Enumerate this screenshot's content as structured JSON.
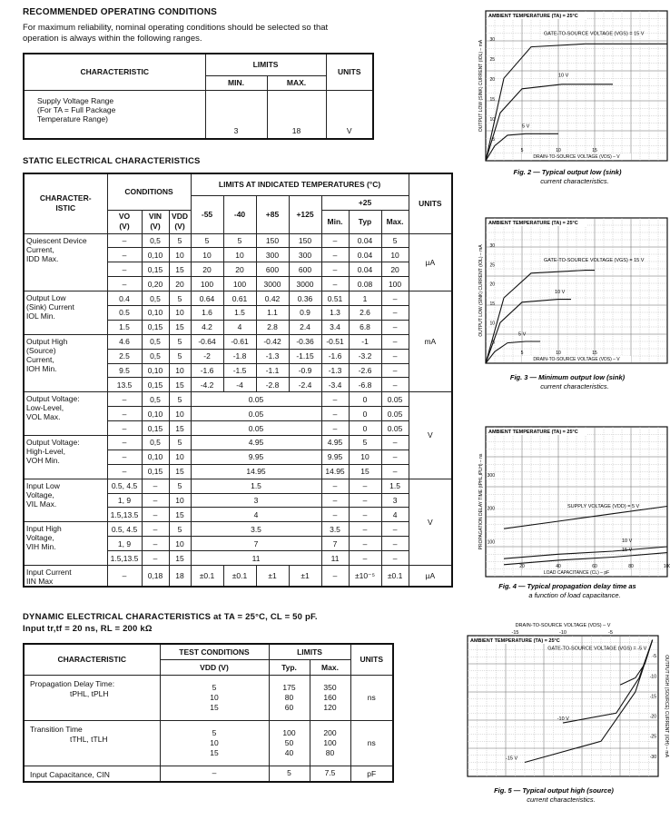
{
  "recommended": {
    "title": "RECOMMENDED OPERATING CONDITIONS",
    "intro": [
      "For maximum reliability, nominal operating conditions should be selected so that",
      "operation is always within the following ranges."
    ],
    "headers": {
      "characteristic": "CHARACTERISTIC",
      "limits": "LIMITS",
      "min": "MIN.",
      "max": "MAX.",
      "units": "UNITS"
    },
    "row": {
      "label": [
        "Supply Voltage Range",
        "(For TA = Full Package",
        "Temperature Range)"
      ],
      "min": "3",
      "max": "18",
      "units": "V"
    }
  },
  "static": {
    "title": "STATIC ELECTRICAL CHARACTERISTICS",
    "headers": {
      "characteristic": [
        "CHARACTER-",
        "ISTIC"
      ],
      "conditions": "CONDITIONS",
      "limits": "LIMITS AT INDICATED TEMPERATURES (°C)",
      "units": "UNITS",
      "vo": [
        "VO",
        "(V)"
      ],
      "vin": [
        "VIN",
        "(V)"
      ],
      "vdd": [
        "VDD",
        "(V)"
      ],
      "temps": [
        "-55",
        "-40",
        "+85",
        "+125"
      ],
      "plus25": "+25",
      "min": "Min.",
      "typ": "Typ",
      "max": "Max."
    },
    "groups": [
      {
        "label": [
          "Quiescent Device",
          "Current,",
          "IDD Max."
        ],
        "rows": [
          [
            "–",
            "0,5",
            "5",
            "5",
            "5",
            "150",
            "150",
            "–",
            "0.04",
            "5"
          ],
          [
            "–",
            "0,10",
            "10",
            "10",
            "10",
            "300",
            "300",
            "–",
            "0.04",
            "10"
          ],
          [
            "–",
            "0,15",
            "15",
            "20",
            "20",
            "600",
            "600",
            "–",
            "0.04",
            "20"
          ],
          [
            "–",
            "0,20",
            "20",
            "100",
            "100",
            "3000",
            "3000",
            "–",
            "0.08",
            "100"
          ]
        ]
      },
      {
        "label": [
          "Output Low",
          "(Sink) Current",
          "IOL Min."
        ],
        "rows": [
          [
            "0.4",
            "0,5",
            "5",
            "0.64",
            "0.61",
            "0.42",
            "0.36",
            "0.51",
            "1",
            "–"
          ],
          [
            "0.5",
            "0,10",
            "10",
            "1.6",
            "1.5",
            "1.1",
            "0.9",
            "1.3",
            "2.6",
            "–"
          ],
          [
            "1.5",
            "0,15",
            "15",
            "4.2",
            "4",
            "2.8",
            "2.4",
            "3.4",
            "6.8",
            "–"
          ]
        ]
      },
      {
        "label": [
          "Output High",
          "(Source)",
          "Current,",
          "IOH Min."
        ],
        "rows": [
          [
            "4.6",
            "0,5",
            "5",
            "-0.64",
            "-0.61",
            "-0.42",
            "-0.36",
            "-0.51",
            "-1",
            "–"
          ],
          [
            "2.5",
            "0,5",
            "5",
            "-2",
            "-1.8",
            "-1.3",
            "-1.15",
            "-1.6",
            "-3.2",
            "–"
          ],
          [
            "9.5",
            "0,10",
            "10",
            "-1.6",
            "-1.5",
            "-1.1",
            "-0.9",
            "-1.3",
            "-2.6",
            "–"
          ],
          [
            "13.5",
            "0,15",
            "15",
            "-4.2",
            "-4",
            "-2.8",
            "-2.4",
            "-3.4",
            "-6.8",
            "–"
          ]
        ]
      },
      {
        "label": [
          "Output Voltage:",
          "Low-Level,",
          "VOL Max."
        ],
        "rows": [
          [
            "–",
            "0,5",
            "5",
            "0.05",
            "–",
            "0",
            "0.05"
          ],
          [
            "–",
            "0,10",
            "10",
            "0.05",
            "–",
            "0",
            "0.05"
          ],
          [
            "–",
            "0,15",
            "15",
            "0.05",
            "–",
            "0",
            "0.05"
          ]
        ]
      },
      {
        "label": [
          "Output Voltage:",
          "High-Level,",
          "VOH Min."
        ],
        "rows": [
          [
            "–",
            "0,5",
            "5",
            "4.95",
            "4.95",
            "5",
            "–"
          ],
          [
            "–",
            "0,10",
            "10",
            "9.95",
            "9.95",
            "10",
            "–"
          ],
          [
            "–",
            "0,15",
            "15",
            "14.95",
            "14.95",
            "15",
            "–"
          ]
        ]
      },
      {
        "label": [
          "Input Low",
          "Voltage,",
          "VIL Max."
        ],
        "rows": [
          [
            "0.5, 4.5",
            "–",
            "5",
            "1.5",
            "–",
            "–",
            "1.5"
          ],
          [
            "1, 9",
            "–",
            "10",
            "3",
            "–",
            "–",
            "3"
          ],
          [
            "1.5,13.5",
            "–",
            "15",
            "4",
            "–",
            "–",
            "4"
          ]
        ]
      },
      {
        "label": [
          "Input High",
          "Voltage,",
          "VIH Min."
        ],
        "rows": [
          [
            "0.5, 4.5",
            "–",
            "5",
            "3.5",
            "3.5",
            "–",
            "–"
          ],
          [
            "1, 9",
            "–",
            "10",
            "7",
            "7",
            "–",
            "–"
          ],
          [
            "1.5,13.5",
            "–",
            "15",
            "11",
            "11",
            "–",
            "–"
          ]
        ]
      },
      {
        "label": [
          "Input Current",
          "IIN Max"
        ],
        "rows": [
          [
            "–",
            "0,18",
            "18",
            "±0.1",
            "±0.1",
            "±1",
            "±1",
            "–",
            "±10⁻⁵",
            "±0.1"
          ]
        ]
      }
    ],
    "units": [
      "µA",
      "mA",
      "V",
      "V",
      "µA"
    ]
  },
  "dynamic": {
    "title": [
      "DYNAMIC ELECTRICAL CHARACTERISTICS at TA = 25°C, CL = 50 pF.",
      "Input tr,tf = 20 ns, RL = 200 kΩ"
    ],
    "headers": {
      "characteristic": "CHARACTERISTIC",
      "test": "TEST CONDITIONS",
      "vdd": "VDD (V)",
      "limits": "LIMITS",
      "typ": "Typ.",
      "max": "Max.",
      "units": "UNITS"
    },
    "rows": [
      {
        "label": [
          "Propagation Delay Time:",
          "tPHL, tPLH"
        ],
        "vdd": [
          "5",
          "10",
          "15"
        ],
        "typ": [
          "175",
          "80",
          "60"
        ],
        "max": [
          "350",
          "160",
          "120"
        ],
        "units": "ns"
      },
      {
        "label": [
          "Transition Time",
          "tTHL, tTLH"
        ],
        "vdd": [
          "5",
          "10",
          "15"
        ],
        "typ": [
          "100",
          "50",
          "40"
        ],
        "max": [
          "200",
          "100",
          "80"
        ],
        "units": "ns"
      },
      {
        "label": [
          "Input Capacitance, CIN"
        ],
        "vdd": [
          "–"
        ],
        "typ": [
          "5"
        ],
        "max": [
          "7.5"
        ],
        "units": "pF"
      }
    ]
  },
  "figures": [
    {
      "header": "AMBIENT TEMPERATURE (TA) = 25°C",
      "curve_labels": [
        "GATE-TO-SOURCE VOLTAGE (VGS) = 15 V",
        "10 V",
        "5 V"
      ],
      "xlabel": "DRAIN-TO-SOURCE VOLTAGE (VDS) – V",
      "ylabel": "OUTPUT LOW (SINK) CURRENT (IOL) – mA",
      "xticks": [
        "5",
        "10",
        "15"
      ],
      "yticks": [
        "5",
        "10",
        "15",
        "20",
        "25",
        "30"
      ],
      "caption": [
        "Fig. 2 — Typical output low (sink)",
        "current characteristics."
      ]
    },
    {
      "header": "AMBIENT TEMPERATURE (TA) = 25°C",
      "curve_labels": [
        "GATE-TO-SOURCE VOLTAGE (VGS) = 15 V",
        "10 V",
        "5 V"
      ],
      "xlabel": "DRAIN-TO-SOURCE VOLTAGE (VDS) – V",
      "ylabel": "OUTPUT LOW (SINK) CURRENT (IOL) – mA",
      "xticks": [
        "5",
        "10",
        "15"
      ],
      "yticks": [
        "5",
        "10",
        "15",
        "20",
        "25",
        "30"
      ],
      "caption": [
        "Fig. 3 — Minimum output low (sink)",
        "current characteristics."
      ]
    },
    {
      "header": "AMBIENT TEMPERATURE (TA) = 25°C",
      "curve_labels": [
        "SUPPLY VOLTAGE (VDD) = 5 V",
        "10 V",
        "15 V"
      ],
      "xlabel": "LOAD CAPACITANCE (CL) – pF",
      "ylabel": "PROPAGATION DELAY TIME (tPHL,tPLH) – ns",
      "xticks": [
        "20",
        "40",
        "60",
        "80",
        "100"
      ],
      "yticks": [
        "100",
        "200",
        "300"
      ],
      "caption": [
        "Fig. 4 — Typical propagation delay time as",
        "a function of load capacitance."
      ]
    },
    {
      "header": "AMBIENT TEMPERATURE (TA) = 25°C",
      "curve_labels": [
        "GATE-TO-SOURCE VOLTAGE (VGS) = -5 V",
        "-10 V",
        "-15 V"
      ],
      "xlabel": "DRAIN-TO-SOURCE VOLTAGE (VDS) – V",
      "ylabel": "OUTPUT HIGH (SOURCE) CURRENT (IOH) – mA",
      "xticks": [
        "-15",
        "-10",
        "-5"
      ],
      "yticks": [
        "-5",
        "-10",
        "-15",
        "-20",
        "-25",
        "-30"
      ],
      "caption": [
        "Fig. 5 — Typical output high (source)",
        "current characteristics."
      ]
    }
  ]
}
